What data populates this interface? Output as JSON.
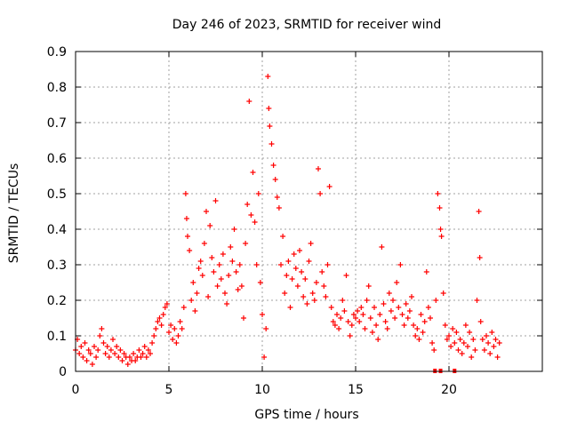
{
  "chart_data": {
    "type": "scatter",
    "title": "Day 246 of 2023, SRMTID for receiver wind",
    "xlabel": "GPS time / hours",
    "ylabel": "SRMTID / TECUs",
    "xlim": [
      0,
      25
    ],
    "ylim": [
      0,
      0.9
    ],
    "xticks": [
      "0",
      "5",
      "10",
      "15",
      "20"
    ],
    "yticks": [
      "0",
      "0.1",
      "0.2",
      "0.3",
      "0.4",
      "0.5",
      "0.6",
      "0.7",
      "0.8",
      "0.9"
    ],
    "grid": true,
    "marker": "plus",
    "series": [
      {
        "name": "SRMTID",
        "color": "#ff0000",
        "points": [
          [
            0.0,
            0.06
          ],
          [
            0.1,
            0.09
          ],
          [
            0.2,
            0.05
          ],
          [
            0.3,
            0.07
          ],
          [
            0.4,
            0.04
          ],
          [
            0.5,
            0.08
          ],
          [
            0.6,
            0.03
          ],
          [
            0.7,
            0.06
          ],
          [
            0.8,
            0.05
          ],
          [
            0.9,
            0.02
          ],
          [
            1.0,
            0.07
          ],
          [
            1.1,
            0.04
          ],
          [
            1.2,
            0.06
          ],
          [
            1.3,
            0.1
          ],
          [
            1.4,
            0.12
          ],
          [
            1.5,
            0.08
          ],
          [
            1.6,
            0.05
          ],
          [
            1.7,
            0.07
          ],
          [
            1.8,
            0.04
          ],
          [
            1.9,
            0.06
          ],
          [
            2.0,
            0.09
          ],
          [
            2.1,
            0.05
          ],
          [
            2.2,
            0.07
          ],
          [
            2.3,
            0.04
          ],
          [
            2.4,
            0.06
          ],
          [
            2.5,
            0.03
          ],
          [
            2.6,
            0.05
          ],
          [
            2.7,
            0.04
          ],
          [
            2.8,
            0.02
          ],
          [
            2.9,
            0.04
          ],
          [
            3.0,
            0.03
          ],
          [
            3.1,
            0.05
          ],
          [
            3.2,
            0.03
          ],
          [
            3.3,
            0.04
          ],
          [
            3.4,
            0.06
          ],
          [
            3.5,
            0.04
          ],
          [
            3.6,
            0.05
          ],
          [
            3.7,
            0.07
          ],
          [
            3.8,
            0.04
          ],
          [
            3.9,
            0.06
          ],
          [
            4.0,
            0.05
          ],
          [
            4.1,
            0.08
          ],
          [
            4.2,
            0.1
          ],
          [
            4.3,
            0.12
          ],
          [
            4.4,
            0.14
          ],
          [
            4.5,
            0.15
          ],
          [
            4.6,
            0.13
          ],
          [
            4.7,
            0.16
          ],
          [
            4.8,
            0.18
          ],
          [
            4.9,
            0.19
          ],
          [
            5.0,
            0.11
          ],
          [
            5.1,
            0.13
          ],
          [
            5.2,
            0.09
          ],
          [
            5.3,
            0.12
          ],
          [
            5.4,
            0.08
          ],
          [
            5.5,
            0.1
          ],
          [
            5.6,
            0.14
          ],
          [
            5.7,
            0.12
          ],
          [
            5.8,
            0.18
          ],
          [
            5.9,
            0.5
          ],
          [
            5.95,
            0.43
          ],
          [
            6.0,
            0.38
          ],
          [
            6.1,
            0.34
          ],
          [
            6.2,
            0.2
          ],
          [
            6.3,
            0.25
          ],
          [
            6.4,
            0.17
          ],
          [
            6.5,
            0.22
          ],
          [
            6.6,
            0.29
          ],
          [
            6.7,
            0.31
          ],
          [
            6.8,
            0.27
          ],
          [
            6.9,
            0.36
          ],
          [
            7.0,
            0.45
          ],
          [
            7.1,
            0.21
          ],
          [
            7.2,
            0.41
          ],
          [
            7.3,
            0.32
          ],
          [
            7.4,
            0.28
          ],
          [
            7.5,
            0.48
          ],
          [
            7.6,
            0.24
          ],
          [
            7.7,
            0.3
          ],
          [
            7.8,
            0.26
          ],
          [
            7.9,
            0.33
          ],
          [
            8.0,
            0.22
          ],
          [
            8.1,
            0.19
          ],
          [
            8.2,
            0.27
          ],
          [
            8.3,
            0.35
          ],
          [
            8.4,
            0.31
          ],
          [
            8.5,
            0.4
          ],
          [
            8.6,
            0.28
          ],
          [
            8.7,
            0.23
          ],
          [
            8.8,
            0.3
          ],
          [
            8.9,
            0.24
          ],
          [
            9.0,
            0.15
          ],
          [
            9.1,
            0.36
          ],
          [
            9.2,
            0.47
          ],
          [
            9.3,
            0.76
          ],
          [
            9.4,
            0.44
          ],
          [
            9.5,
            0.56
          ],
          [
            9.6,
            0.42
          ],
          [
            9.7,
            0.3
          ],
          [
            9.8,
            0.5
          ],
          [
            9.9,
            0.25
          ],
          [
            10.0,
            0.16
          ],
          [
            10.1,
            0.04
          ],
          [
            10.2,
            0.12
          ],
          [
            10.3,
            0.83
          ],
          [
            10.35,
            0.74
          ],
          [
            10.4,
            0.69
          ],
          [
            10.5,
            0.64
          ],
          [
            10.6,
            0.58
          ],
          [
            10.7,
            0.54
          ],
          [
            10.8,
            0.49
          ],
          [
            10.9,
            0.46
          ],
          [
            11.0,
            0.3
          ],
          [
            11.1,
            0.38
          ],
          [
            11.2,
            0.22
          ],
          [
            11.3,
            0.27
          ],
          [
            11.4,
            0.31
          ],
          [
            11.5,
            0.18
          ],
          [
            11.6,
            0.26
          ],
          [
            11.7,
            0.33
          ],
          [
            11.8,
            0.29
          ],
          [
            11.9,
            0.24
          ],
          [
            12.0,
            0.34
          ],
          [
            12.1,
            0.28
          ],
          [
            12.2,
            0.21
          ],
          [
            12.3,
            0.26
          ],
          [
            12.4,
            0.19
          ],
          [
            12.5,
            0.31
          ],
          [
            12.6,
            0.36
          ],
          [
            12.7,
            0.22
          ],
          [
            12.8,
            0.2
          ],
          [
            12.9,
            0.25
          ],
          [
            13.0,
            0.57
          ],
          [
            13.1,
            0.5
          ],
          [
            13.2,
            0.28
          ],
          [
            13.3,
            0.24
          ],
          [
            13.4,
            0.21
          ],
          [
            13.5,
            0.3
          ],
          [
            13.6,
            0.52
          ],
          [
            13.7,
            0.18
          ],
          [
            13.8,
            0.14
          ],
          [
            13.9,
            0.13
          ],
          [
            14.0,
            0.16
          ],
          [
            14.1,
            0.12
          ],
          [
            14.2,
            0.15
          ],
          [
            14.3,
            0.2
          ],
          [
            14.4,
            0.17
          ],
          [
            14.5,
            0.27
          ],
          [
            14.6,
            0.14
          ],
          [
            14.7,
            0.1
          ],
          [
            14.8,
            0.13
          ],
          [
            14.9,
            0.16
          ],
          [
            15.0,
            0.15
          ],
          [
            15.1,
            0.17
          ],
          [
            15.2,
            0.14
          ],
          [
            15.3,
            0.18
          ],
          [
            15.4,
            0.16
          ],
          [
            15.5,
            0.12
          ],
          [
            15.6,
            0.2
          ],
          [
            15.7,
            0.24
          ],
          [
            15.8,
            0.15
          ],
          [
            15.9,
            0.11
          ],
          [
            16.0,
            0.18
          ],
          [
            16.1,
            0.13
          ],
          [
            16.2,
            0.09
          ],
          [
            16.3,
            0.16
          ],
          [
            16.4,
            0.35
          ],
          [
            16.5,
            0.19
          ],
          [
            16.6,
            0.14
          ],
          [
            16.7,
            0.12
          ],
          [
            16.8,
            0.22
          ],
          [
            16.9,
            0.17
          ],
          [
            17.0,
            0.2
          ],
          [
            17.1,
            0.15
          ],
          [
            17.2,
            0.25
          ],
          [
            17.3,
            0.18
          ],
          [
            17.4,
            0.3
          ],
          [
            17.5,
            0.16
          ],
          [
            17.6,
            0.13
          ],
          [
            17.7,
            0.19
          ],
          [
            17.8,
            0.15
          ],
          [
            17.9,
            0.17
          ],
          [
            18.0,
            0.21
          ],
          [
            18.1,
            0.13
          ],
          [
            18.2,
            0.1
          ],
          [
            18.3,
            0.12
          ],
          [
            18.4,
            0.09
          ],
          [
            18.5,
            0.16
          ],
          [
            18.6,
            0.11
          ],
          [
            18.7,
            0.14
          ],
          [
            18.8,
            0.28
          ],
          [
            18.9,
            0.18
          ],
          [
            19.0,
            0.15
          ],
          [
            19.1,
            0.08
          ],
          [
            19.2,
            0.06
          ],
          [
            19.3,
            0.2
          ],
          [
            19.4,
            0.5
          ],
          [
            19.5,
            0.46
          ],
          [
            19.55,
            0.4
          ],
          [
            19.6,
            0.38
          ],
          [
            19.7,
            0.22
          ],
          [
            19.8,
            0.13
          ],
          [
            19.9,
            0.09
          ],
          [
            20.0,
            0.1
          ],
          [
            20.1,
            0.07
          ],
          [
            20.2,
            0.12
          ],
          [
            20.3,
            0.08
          ],
          [
            20.4,
            0.11
          ],
          [
            20.5,
            0.06
          ],
          [
            20.6,
            0.09
          ],
          [
            20.7,
            0.05
          ],
          [
            20.8,
            0.08
          ],
          [
            20.9,
            0.13
          ],
          [
            21.0,
            0.07
          ],
          [
            21.1,
            0.11
          ],
          [
            21.2,
            0.04
          ],
          [
            21.3,
            0.09
          ],
          [
            21.4,
            0.06
          ],
          [
            21.5,
            0.2
          ],
          [
            21.6,
            0.45
          ],
          [
            21.65,
            0.32
          ],
          [
            21.7,
            0.14
          ],
          [
            21.8,
            0.09
          ],
          [
            21.9,
            0.06
          ],
          [
            22.0,
            0.1
          ],
          [
            22.1,
            0.08
          ],
          [
            22.2,
            0.05
          ],
          [
            22.3,
            0.11
          ],
          [
            22.4,
            0.07
          ],
          [
            22.5,
            0.09
          ],
          [
            22.6,
            0.04
          ],
          [
            22.7,
            0.08
          ]
        ]
      }
    ],
    "bottom_marks": [
      19.25,
      19.55,
      20.3
    ]
  }
}
